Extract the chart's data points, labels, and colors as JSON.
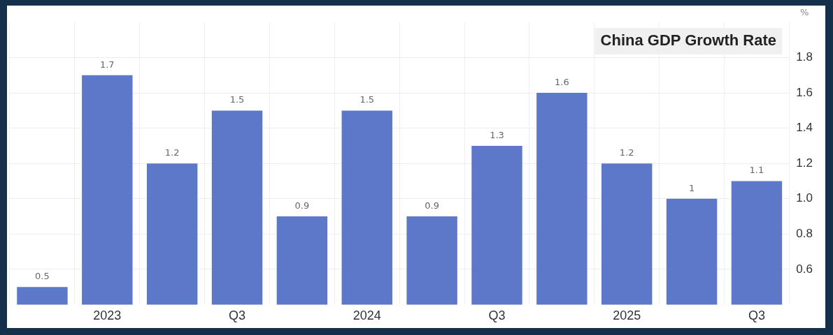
{
  "chart_data": {
    "type": "bar",
    "title": "China GDP Growth Rate",
    "ylabel": "%",
    "categories": [
      null,
      "2023",
      null,
      "Q3",
      null,
      "2024",
      null,
      "Q3",
      null,
      "2025",
      null,
      "Q3"
    ],
    "values": [
      0.5,
      1.7,
      1.2,
      1.5,
      0.9,
      1.5,
      0.9,
      1.3,
      1.6,
      1.2,
      1,
      1.1
    ],
    "color": "#5e78c9",
    "ylim": [
      0.4,
      2.0
    ],
    "yticks": [
      0.6,
      0.8,
      {
        "value": 1,
        "label": "1.0"
      },
      1.2,
      1.4,
      1.6,
      1.8
    ],
    "grid": true,
    "data_labels": true
  }
}
